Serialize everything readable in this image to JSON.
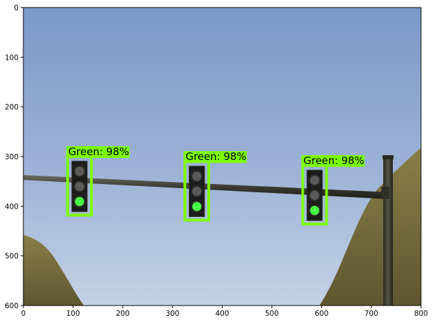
{
  "plot": {
    "x_ticks": [
      "0",
      "100",
      "200",
      "300",
      "400",
      "500",
      "600",
      "700",
      "800"
    ],
    "y_ticks": [
      "0",
      "100",
      "200",
      "300",
      "400",
      "500",
      "600"
    ],
    "x_range": [
      0,
      800
    ],
    "y_range": [
      0,
      600
    ],
    "y_inverted": true
  },
  "detections": [
    {
      "label": "Green: 98%",
      "class": "Green",
      "score": 0.98,
      "box": {
        "x1": 89,
        "y1": 300,
        "x2": 137,
        "y2": 418
      }
    },
    {
      "label": "Green: 98%",
      "class": "Green",
      "score": 0.98,
      "box": {
        "x1": 325,
        "y1": 310,
        "x2": 373,
        "y2": 428
      }
    },
    {
      "label": "Green: 98%",
      "class": "Green",
      "score": 0.98,
      "box": {
        "x1": 562,
        "y1": 318,
        "x2": 610,
        "y2": 436
      }
    }
  ],
  "colors": {
    "box": "#7cfc00",
    "sky_top": "#7b98c8",
    "sky_bottom": "#b8c8e0",
    "hill": "#7d7340",
    "pole": "#3f3f35",
    "lit_lamp": "#46ff46",
    "unlit_lamp": "#5a5a5a"
  }
}
